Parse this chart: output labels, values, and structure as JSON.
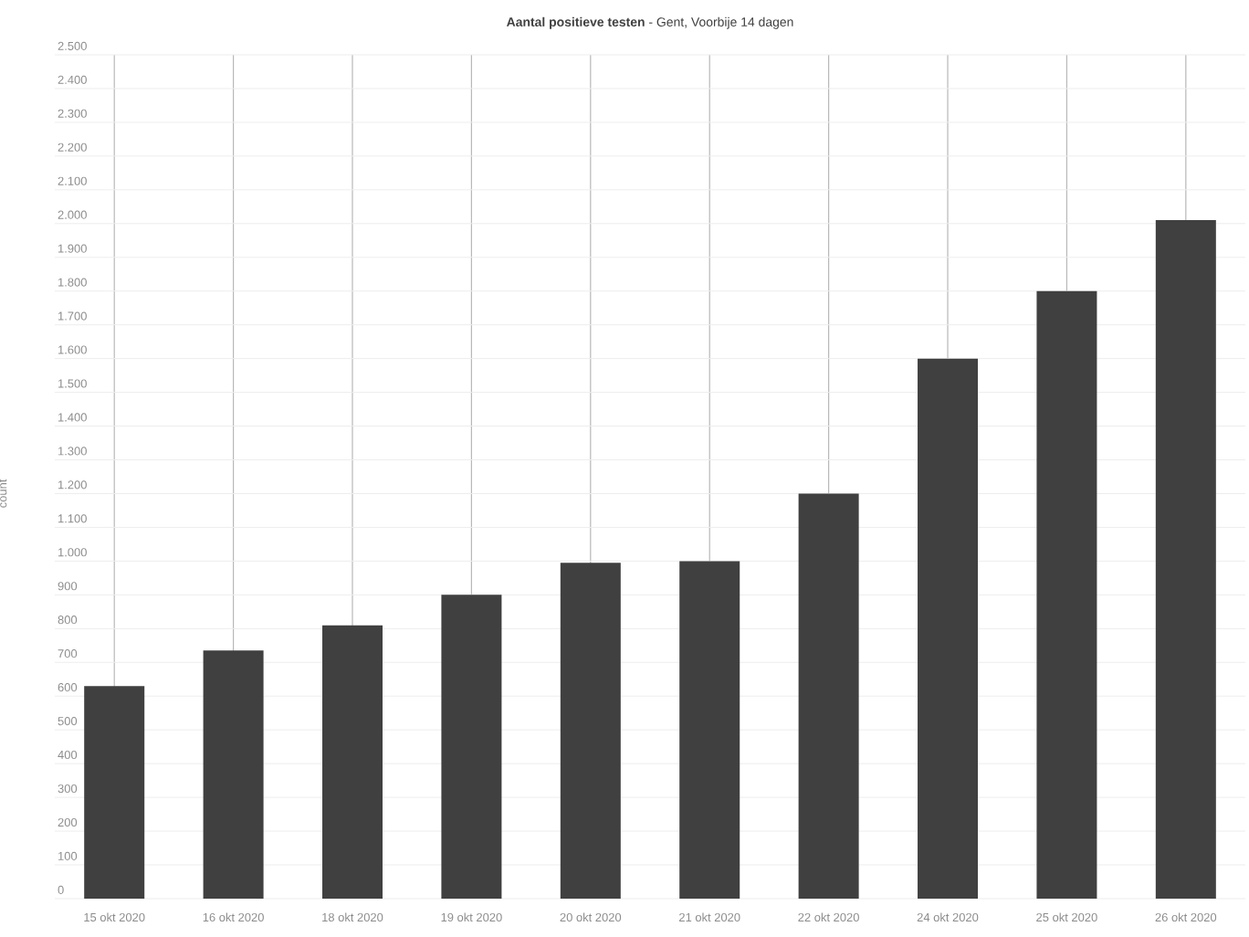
{
  "chart_data": {
    "type": "bar",
    "title": "**Aantal positieve testen** - Gent, Voorbije 14 dagen",
    "ylabel": "count",
    "categories": [
      "15 okt 2020",
      "16 okt 2020",
      "18 okt 2020",
      "19 okt 2020",
      "20 okt 2020",
      "21 okt 2020",
      "22 okt 2020",
      "24 okt 2020",
      "25 okt 2020",
      "26 okt 2020"
    ],
    "values": [
      630,
      735,
      810,
      900,
      995,
      1000,
      1200,
      1600,
      1800,
      2010
    ],
    "color": "#404040",
    "ylim": [
      0,
      2500
    ],
    "yticks": [
      0,
      100,
      200,
      300,
      400,
      500,
      600,
      700,
      800,
      900,
      {
        "value": 1000,
        "label": "1.000"
      },
      {
        "value": 1100,
        "label": "1.100"
      },
      {
        "value": 1200,
        "label": "1.200"
      },
      {
        "value": 1300,
        "label": "1.300"
      },
      {
        "value": 1400,
        "label": "1.400"
      },
      {
        "value": 1500,
        "label": "1.500"
      },
      {
        "value": 1600,
        "label": "1.600"
      },
      {
        "value": 1700,
        "label": "1.700"
      },
      {
        "value": 1800,
        "label": "1.800"
      },
      {
        "value": 1900,
        "label": "1.900"
      },
      {
        "value": 2000,
        "label": "2.000"
      },
      {
        "value": 2100,
        "label": "2.100"
      },
      {
        "value": 2200,
        "label": "2.200"
      },
      {
        "value": 2300,
        "label": "2.300"
      },
      {
        "value": 2400,
        "label": "2.400"
      },
      {
        "value": 2500,
        "label": "2.500"
      }
    ],
    "grid": true
  }
}
